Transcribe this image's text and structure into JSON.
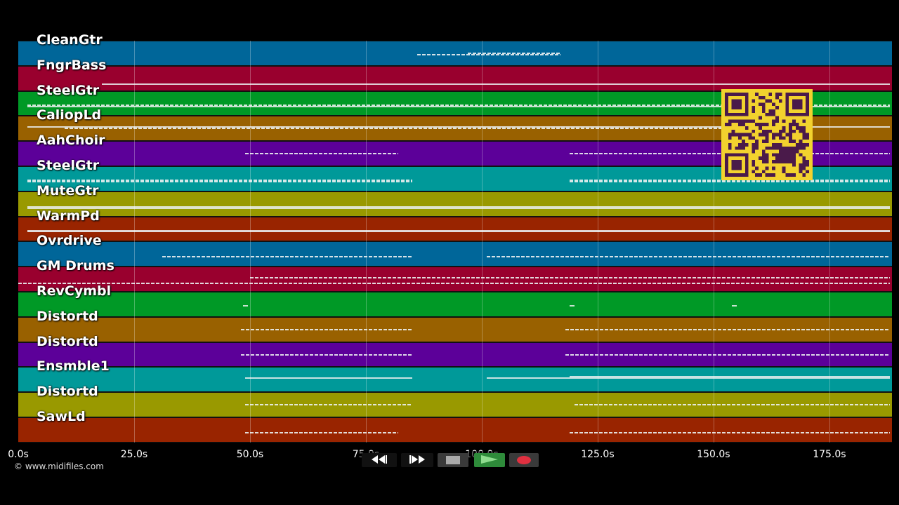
{
  "tracks": [
    {
      "name": "CleanGtr",
      "color": "#006699"
    },
    {
      "name": "FngrBass",
      "color": "#99002e"
    },
    {
      "name": "SteelGtr",
      "color": "#009926"
    },
    {
      "name": "CaliopLd",
      "color": "#996100"
    },
    {
      "name": "AahChoir",
      "color": "#5c0099"
    },
    {
      "name": "SteelGtr",
      "color": "#009999"
    },
    {
      "name": "MuteGtr",
      "color": "#999900"
    },
    {
      "name": "WarmPd",
      "color": "#992400"
    },
    {
      "name": "Ovrdrive",
      "color": "#006699"
    },
    {
      "name": "GM Drums",
      "color": "#99002e"
    },
    {
      "name": "RevCymbl",
      "color": "#009926"
    },
    {
      "name": "Distortd",
      "color": "#996100"
    },
    {
      "name": "Distortd",
      "color": "#5c0099"
    },
    {
      "name": "Ensmble1",
      "color": "#009999"
    },
    {
      "name": "Distortd",
      "color": "#999900"
    },
    {
      "name": "SawLd",
      "color": "#992400"
    }
  ],
  "timeline": {
    "ticks": [
      "0.0s",
      "25.0s",
      "50.0s",
      "75.0s",
      "100.0s",
      "125.0s",
      "150.0s",
      "175.0s"
    ],
    "tick_seconds": [
      0,
      25,
      50,
      75,
      100,
      125,
      150,
      175
    ],
    "duration_seconds": 188.5
  },
  "copyright": "© www.midifiles.com",
  "transport": {
    "rewind": "rewind-icon",
    "fast_forward": "fast-forward-icon",
    "stop": "stop-icon",
    "play": "play-icon",
    "record": "record-icon"
  },
  "colors": {
    "background": "#000000",
    "qr_background": "#f2d22e",
    "qr_foreground": "#4a1a4a",
    "play_active": "#2e8b3a",
    "record": "#e03040"
  }
}
